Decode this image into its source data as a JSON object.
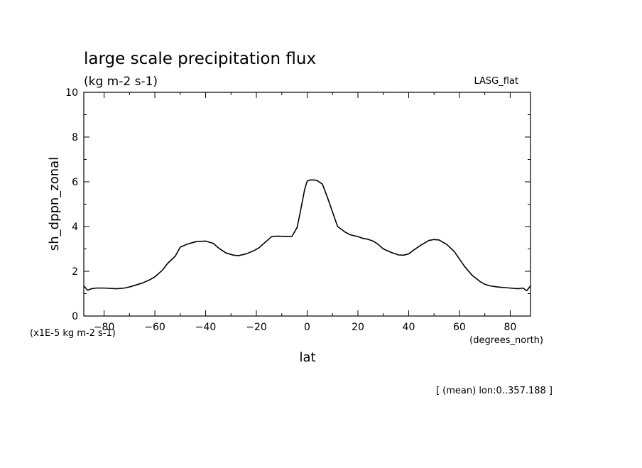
{
  "chart_data": {
    "type": "line",
    "title": "large scale precipitation flux",
    "subtitle": "(kg m-2 s-1)",
    "model_label": "LASG_flat",
    "xlabel": "lat",
    "x_units": "(degrees_north)",
    "ylabel": "sh_dppn_zonal",
    "y_scale_note": "(x1E-5 kg m-2 s-1)",
    "footnote": "[ (mean) lon:0..357.188 ]",
    "xlim": [
      -88,
      88
    ],
    "ylim": [
      0,
      10
    ],
    "x_ticks": [
      -80,
      -60,
      -40,
      -20,
      0,
      20,
      40,
      60,
      80
    ],
    "x_tick_labels": [
      "−80",
      "−60",
      "−40",
      "−20",
      "0",
      "20",
      "40",
      "60",
      "80"
    ],
    "y_ticks": [
      0,
      2,
      4,
      6,
      8,
      10
    ],
    "y_tick_labels": [
      "0",
      "2",
      "4",
      "6",
      "8",
      "10"
    ],
    "grid": false,
    "series": [
      {
        "color": "#000000",
        "x": [
          -88,
          -86.5,
          -85,
          -83,
          -80,
          -75,
          -72,
          -70,
          -65,
          -62,
          -60,
          -57,
          -55,
          -52,
          -50,
          -47,
          -44,
          -40,
          -37,
          -35,
          -32,
          -29,
          -27,
          -24,
          -21,
          -19,
          -17,
          -15,
          -14,
          -12,
          -9,
          -6,
          -4,
          -3,
          -1,
          0,
          1,
          3,
          4,
          6,
          8,
          10,
          12,
          15,
          17,
          20,
          22,
          24,
          26,
          28,
          30,
          33,
          36,
          38,
          40,
          42,
          45,
          48,
          50,
          52,
          55,
          58,
          60,
          62,
          65,
          68,
          70,
          72,
          75,
          78,
          80,
          83,
          85,
          86.5,
          88
        ],
        "y": [
          1.35,
          1.15,
          1.22,
          1.25,
          1.25,
          1.22,
          1.25,
          1.3,
          1.47,
          1.62,
          1.75,
          2.05,
          2.35,
          2.67,
          3.08,
          3.22,
          3.32,
          3.35,
          3.25,
          3.05,
          2.82,
          2.72,
          2.7,
          2.78,
          2.92,
          3.05,
          3.25,
          3.45,
          3.55,
          3.57,
          3.56,
          3.56,
          3.95,
          4.48,
          5.65,
          6.03,
          6.08,
          6.08,
          6.05,
          5.9,
          5.3,
          4.65,
          4.0,
          3.75,
          3.63,
          3.55,
          3.47,
          3.43,
          3.35,
          3.2,
          3.0,
          2.85,
          2.73,
          2.72,
          2.78,
          2.95,
          3.18,
          3.38,
          3.42,
          3.4,
          3.2,
          2.88,
          2.55,
          2.22,
          1.82,
          1.55,
          1.42,
          1.35,
          1.3,
          1.27,
          1.25,
          1.22,
          1.25,
          1.13,
          1.35
        ]
      }
    ]
  }
}
